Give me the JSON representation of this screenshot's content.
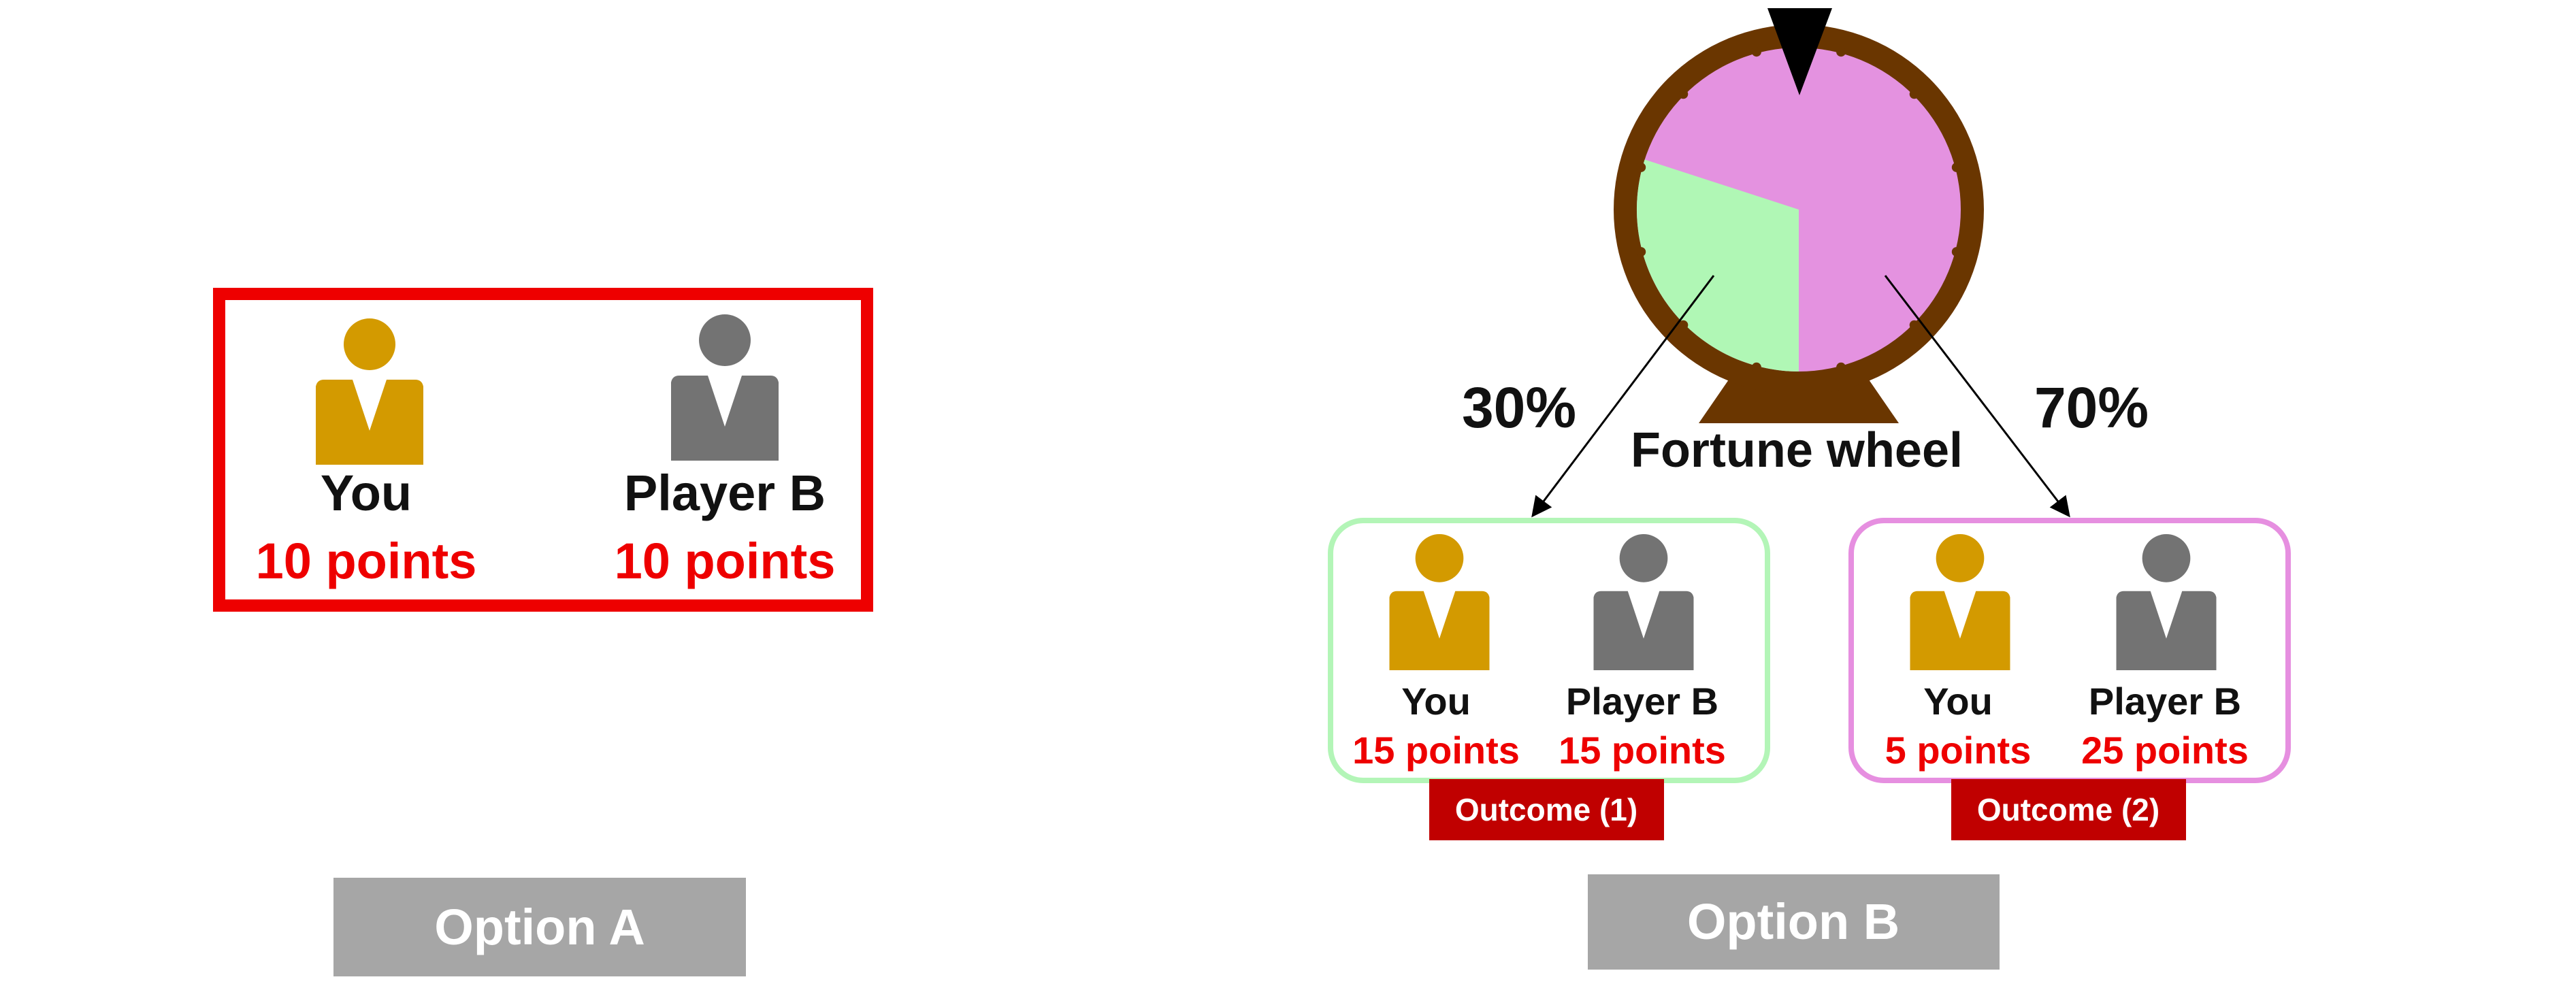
{
  "colors": {
    "you": "#d39a00",
    "player_b": "#737373",
    "points_text": "#ee0000",
    "option_a_frame": "#ee0000",
    "outcome1_frame": "#b3f5b7",
    "outcome2_frame": "#e68fe0",
    "wheel_rim": "#6a3600",
    "wheel_pink": "#e492e0",
    "wheel_green": "#b0f7b5",
    "tag_bg": "#c00000",
    "button_bg": "#a6a6a6"
  },
  "option_a": {
    "you_label": "You",
    "you_points": "10 points",
    "player_b_label": "Player B",
    "player_b_points": "10 points",
    "button_label": "Option A"
  },
  "option_b": {
    "wheel_label": "Fortune wheel",
    "wheel_green_share": 0.3,
    "wheel_pink_share": 0.7,
    "left_prob": "30%",
    "right_prob": "70%",
    "outcome1": {
      "you_label": "You",
      "you_points": "15 points",
      "player_b_label": "Player B",
      "player_b_points": "15 points",
      "tag": "Outcome (1)"
    },
    "outcome2": {
      "you_label": "You",
      "you_points": "5 points",
      "player_b_label": "Player B",
      "player_b_points": "25 points",
      "tag": "Outcome (2)"
    },
    "button_label": "Option B"
  },
  "icons": {
    "you": "person-icon",
    "player_b": "person-icon",
    "pointer": "triangle-pointer-icon"
  }
}
